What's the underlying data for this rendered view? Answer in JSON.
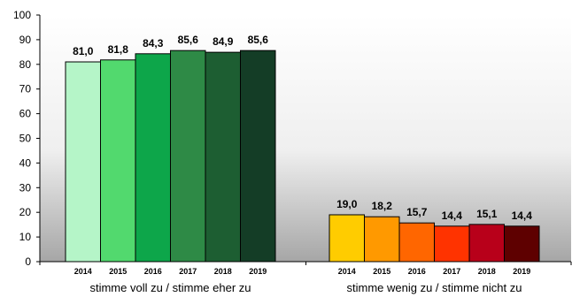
{
  "chart_data": {
    "type": "bar",
    "ylim": [
      0,
      100
    ],
    "yticks": [
      0,
      10,
      20,
      30,
      40,
      50,
      60,
      70,
      80,
      90,
      100
    ],
    "grid": false,
    "background": "gradient",
    "groups": [
      {
        "label": "stimme voll zu / stimme eher zu",
        "categories": [
          "2014",
          "2015",
          "2016",
          "2017",
          "2018",
          "2019"
        ],
        "values": [
          81.0,
          81.8,
          84.3,
          85.6,
          84.9,
          85.6
        ],
        "value_labels": [
          "81,0",
          "81,8",
          "84,3",
          "85,6",
          "84,9",
          "85,6"
        ],
        "colors": [
          "#b5f5c8",
          "#52d96e",
          "#0da64a",
          "#2e8a46",
          "#1d5e32",
          "#143d26"
        ]
      },
      {
        "label": "stimme wenig zu / stimme nicht zu",
        "categories": [
          "2014",
          "2015",
          "2016",
          "2017",
          "2018",
          "2019"
        ],
        "values": [
          19.0,
          18.2,
          15.7,
          14.4,
          15.1,
          14.4
        ],
        "value_labels": [
          "19,0",
          "18,2",
          "15,7",
          "14,4",
          "15,1",
          "14,4"
        ],
        "colors": [
          "#ffcc00",
          "#ff9900",
          "#ff6600",
          "#ff3300",
          "#b8001a",
          "#5e0000"
        ]
      }
    ]
  }
}
